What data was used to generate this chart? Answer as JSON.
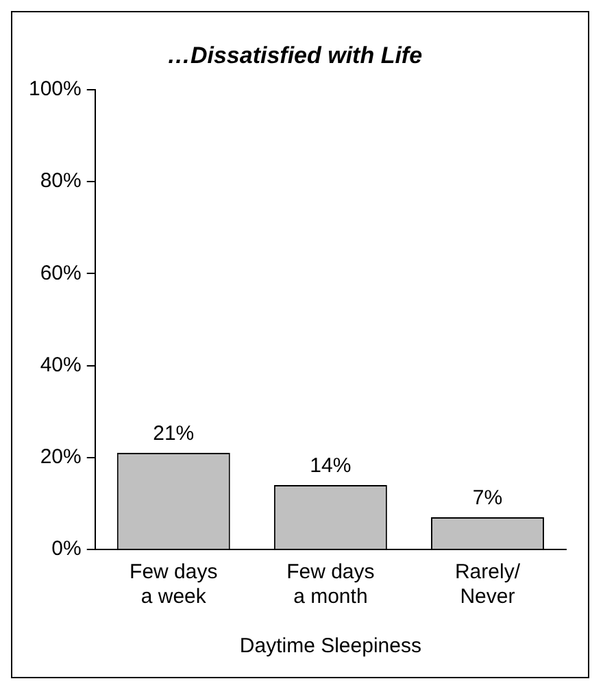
{
  "chart_data": {
    "type": "bar",
    "title": "…Dissatisfied with Life",
    "xlabel": "Daytime Sleepiness",
    "categories": [
      "Few days\na week",
      "Few days\na month",
      "Rarely/\nNever"
    ],
    "values": [
      21,
      14,
      7
    ],
    "value_labels": [
      "21%",
      "14%",
      "7%"
    ],
    "color": "#c0c0c0",
    "ylim": [
      0,
      100
    ],
    "yticks": [
      {
        "value": 0,
        "label": "0%"
      },
      {
        "value": 20,
        "label": "20%"
      },
      {
        "value": 40,
        "label": "40%"
      },
      {
        "value": 60,
        "label": "60%"
      },
      {
        "value": 80,
        "label": "80%"
      },
      {
        "value": 100,
        "label": "100%"
      }
    ],
    "grid": false,
    "legend": false
  }
}
